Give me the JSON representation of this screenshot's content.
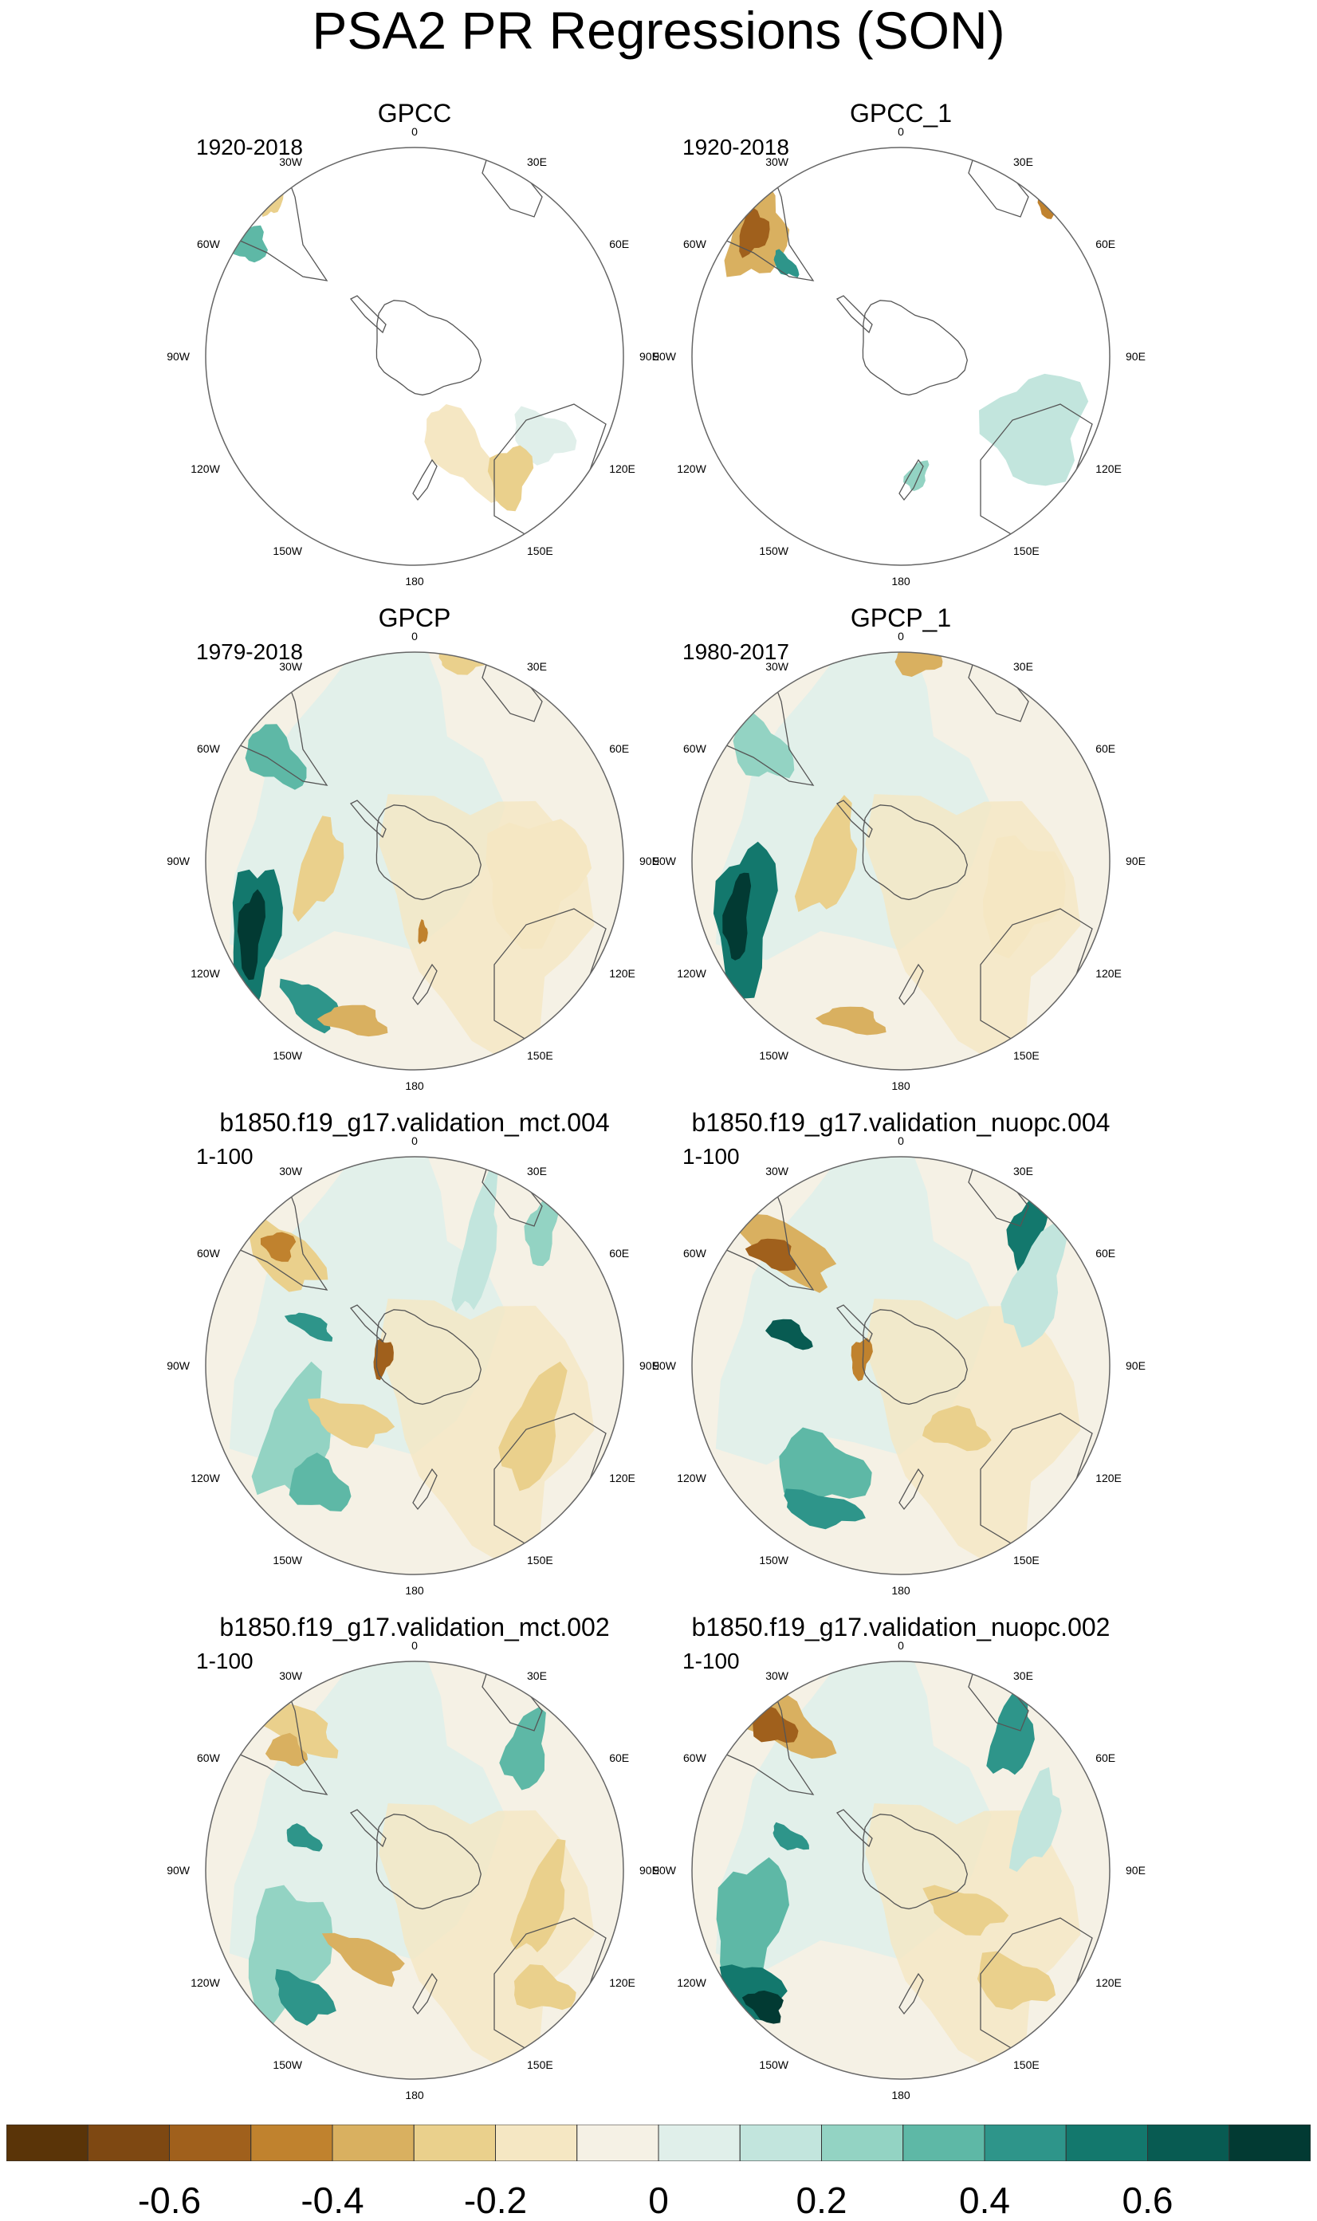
{
  "title": "PSA2 PR Regressions (SON)",
  "panels": [
    {
      "title": "GPCC",
      "period": "1920-2018",
      "coverage": "land"
    },
    {
      "title": "GPCC_1",
      "period": "1920-2018",
      "coverage": "land"
    },
    {
      "title": "GPCP",
      "period": "1979-2018",
      "coverage": "full"
    },
    {
      "title": "GPCP_1",
      "period": "1980-2017",
      "coverage": "full"
    },
    {
      "title": "b1850.f19_g17.validation_mct.004",
      "period": "1-100",
      "coverage": "full"
    },
    {
      "title": "b1850.f19_g17.validation_nuopc.004",
      "period": "1-100",
      "coverage": "full"
    },
    {
      "title": "b1850.f19_g17.validation_mct.002",
      "period": "1-100",
      "coverage": "full"
    },
    {
      "title": "b1850.f19_g17.validation_nuopc.002",
      "period": "1-100",
      "coverage": "full"
    }
  ],
  "longitude_labels": [
    "0",
    "30E",
    "60E",
    "90E",
    "120E",
    "150E",
    "180",
    "150W",
    "120W",
    "90W",
    "60W",
    "30W"
  ],
  "colorbar": {
    "colors": [
      "#5a3408",
      "#7e4812",
      "#a0601c",
      "#c0822e",
      "#d9b060",
      "#ead08c",
      "#f5e7c3",
      "#f5f1e5",
      "#e0efea",
      "#c2e5dd",
      "#93d3c3",
      "#5eb8a6",
      "#2e958a",
      "#13786d",
      "#085b52",
      "#023a33"
    ],
    "labels": [
      "-0.6",
      "-0.4",
      "-0.2",
      "0",
      "0.2",
      "0.4",
      "0.6"
    ],
    "label_values": [
      -0.6,
      -0.4,
      -0.2,
      0,
      0.2,
      0.4,
      0.6
    ],
    "min": -0.8,
    "max": 0.8
  }
}
